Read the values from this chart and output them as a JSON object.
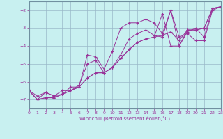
{
  "xlabel": "Windchill (Refroidissement éolien,°C)",
  "xlim": [
    0,
    23
  ],
  "ylim": [
    -7.5,
    -1.5
  ],
  "yticks": [
    -7,
    -6,
    -5,
    -4,
    -3,
    -2
  ],
  "xticks": [
    0,
    1,
    2,
    3,
    4,
    5,
    6,
    7,
    8,
    9,
    10,
    11,
    12,
    13,
    14,
    15,
    16,
    17,
    18,
    19,
    20,
    21,
    22,
    23
  ],
  "bg_color": "#c8f0f0",
  "grid_color": "#9ab8c8",
  "line_color": "#993399",
  "spine_color": "#7090a0",
  "lines": [
    {
      "x": [
        0,
        1,
        2,
        3,
        4,
        5,
        6,
        7,
        8,
        9,
        10,
        11,
        12,
        13,
        14,
        15,
        16,
        17,
        18,
        19,
        20,
        21,
        22,
        23
      ],
      "y": [
        -6.5,
        -7.0,
        -6.6,
        -6.8,
        -6.7,
        -6.3,
        -6.3,
        -4.5,
        -4.6,
        -5.3,
        -4.3,
        -3.0,
        -2.7,
        -2.7,
        -2.5,
        -2.7,
        -3.3,
        -2.0,
        -3.5,
        -3.3,
        -3.7,
        -3.7,
        -2.0,
        -1.8
      ]
    },
    {
      "x": [
        0,
        1,
        2,
        3,
        4,
        5,
        6,
        7,
        8,
        9,
        10,
        11,
        12,
        13,
        14,
        15,
        16,
        17,
        18,
        19,
        20,
        21,
        22,
        23
      ],
      "y": [
        -6.5,
        -6.8,
        -6.6,
        -6.8,
        -6.5,
        -6.5,
        -6.2,
        -5.0,
        -4.8,
        -5.5,
        -5.2,
        -4.5,
        -3.6,
        -3.3,
        -3.1,
        -3.4,
        -3.5,
        -2.0,
        -4.0,
        -3.2,
        -3.0,
        -3.5,
        -1.9,
        -1.8
      ]
    },
    {
      "x": [
        0,
        1,
        2,
        3,
        4,
        5,
        6,
        7,
        8,
        9,
        10,
        11,
        12,
        13,
        14,
        15,
        16,
        17,
        18,
        19,
        20,
        21,
        22,
        23
      ],
      "y": [
        -6.5,
        -7.0,
        -6.9,
        -6.9,
        -6.7,
        -6.5,
        -6.3,
        -5.8,
        -5.5,
        -5.5,
        -5.2,
        -4.7,
        -4.2,
        -3.8,
        -3.6,
        -3.5,
        -3.4,
        -3.2,
        -3.7,
        -3.1,
        -3.1,
        -3.0,
        -1.9,
        -1.8
      ]
    },
    {
      "x": [
        0,
        1,
        2,
        3,
        4,
        5,
        6,
        7,
        8,
        9,
        10,
        11,
        12,
        13,
        14,
        15,
        16,
        17,
        18,
        19,
        20,
        21,
        22,
        23
      ],
      "y": [
        -6.5,
        -7.0,
        -6.9,
        -6.9,
        -6.7,
        -6.5,
        -6.3,
        -5.8,
        -5.5,
        -5.5,
        -5.2,
        -4.7,
        -4.2,
        -3.8,
        -3.6,
        -3.5,
        -2.2,
        -4.0,
        -4.0,
        -3.1,
        -3.1,
        -3.0,
        -1.9,
        -1.8
      ]
    }
  ]
}
